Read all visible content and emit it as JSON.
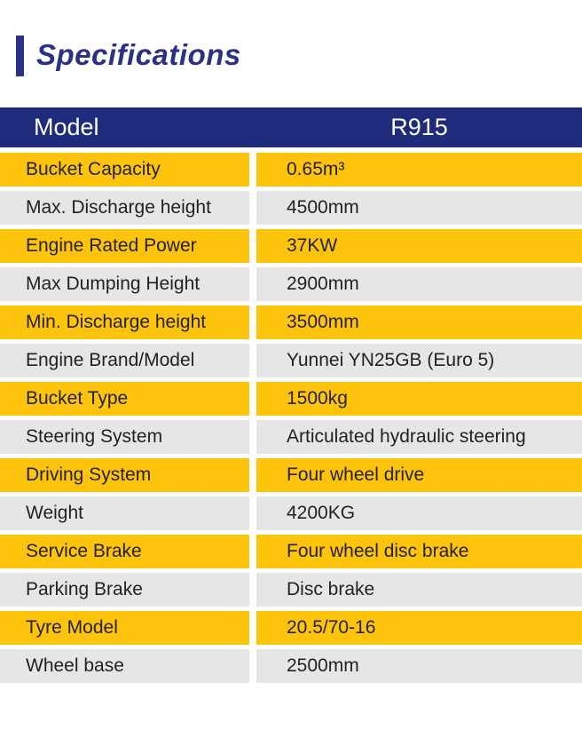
{
  "title": "Specifications",
  "colors": {
    "navy": "#1f2c7c",
    "title_navy": "#2a3186",
    "yellow": "#fec30b",
    "gray": "#e6e6e6",
    "text": "#222222",
    "header_text": "#ffffff"
  },
  "table": {
    "header": {
      "label": "Model",
      "value": "R915"
    },
    "rows": [
      {
        "label": "Bucket Capacity",
        "value": "0.65m³"
      },
      {
        "label": "Max. Discharge height",
        "value": "4500mm"
      },
      {
        "label": "Engine Rated Power",
        "value": "37KW"
      },
      {
        "label": "Max Dumping Height",
        "value": "2900mm"
      },
      {
        "label": "Min. Discharge height",
        "value": "3500mm"
      },
      {
        "label": "Engine Brand/Model",
        "value": "Yunnei YN25GB (Euro 5)"
      },
      {
        "label": "Bucket Type",
        "value": "1500kg"
      },
      {
        "label": "Steering System",
        "value": "Articulated hydraulic steering"
      },
      {
        "label": "Driving System",
        "value": "Four wheel drive"
      },
      {
        "label": "Weight",
        "value": "4200KG"
      },
      {
        "label": "Service Brake",
        "value": "Four wheel disc brake"
      },
      {
        "label": "Parking Brake",
        "value": "Disc brake"
      },
      {
        "label": "Tyre Model",
        "value": "20.5/70-16"
      },
      {
        "label": "Wheel base",
        "value": "2500mm"
      }
    ]
  }
}
